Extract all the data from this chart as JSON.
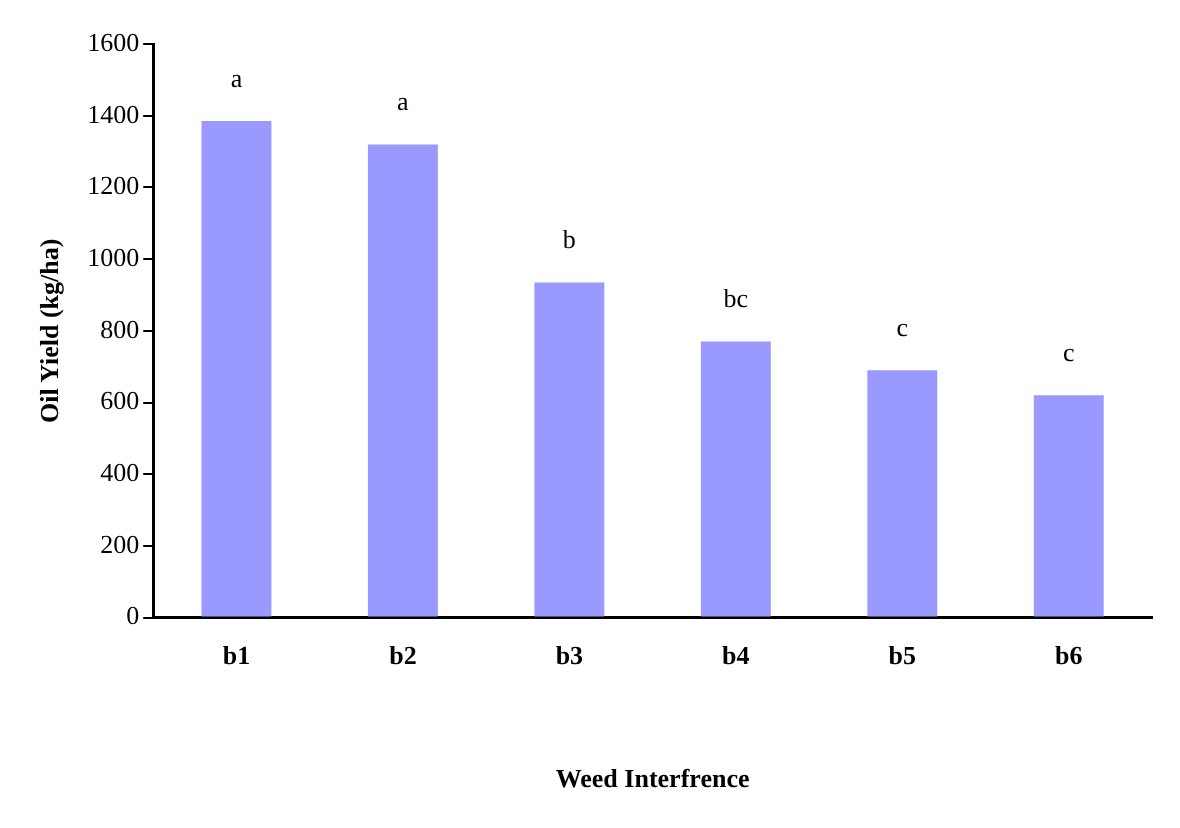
{
  "chart_data": {
    "type": "bar",
    "xlabel": "Weed Interfrence",
    "ylabel": "Oil Yield (kg/ha)",
    "categories": [
      "b1",
      "b2",
      "b3",
      "b4",
      "b5",
      "b6"
    ],
    "values": [
      1385,
      1320,
      935,
      770,
      690,
      620
    ],
    "color": "#9999ff",
    "ylim": [
      0,
      1600
    ],
    "yticks": [
      0,
      200,
      400,
      600,
      800,
      1000,
      1200,
      1400,
      1600
    ],
    "grid": false,
    "legend": false,
    "annotations": [
      {
        "text": "a",
        "x": "b1",
        "y": 1385
      },
      {
        "text": "a",
        "x": "b2",
        "y": 1320
      },
      {
        "text": "b",
        "x": "b3",
        "y": 935
      },
      {
        "text": "bc",
        "x": "b4",
        "y": 770
      },
      {
        "text": "c",
        "x": "b5",
        "y": 690
      },
      {
        "text": "c",
        "x": "b6",
        "y": 620
      }
    ]
  }
}
